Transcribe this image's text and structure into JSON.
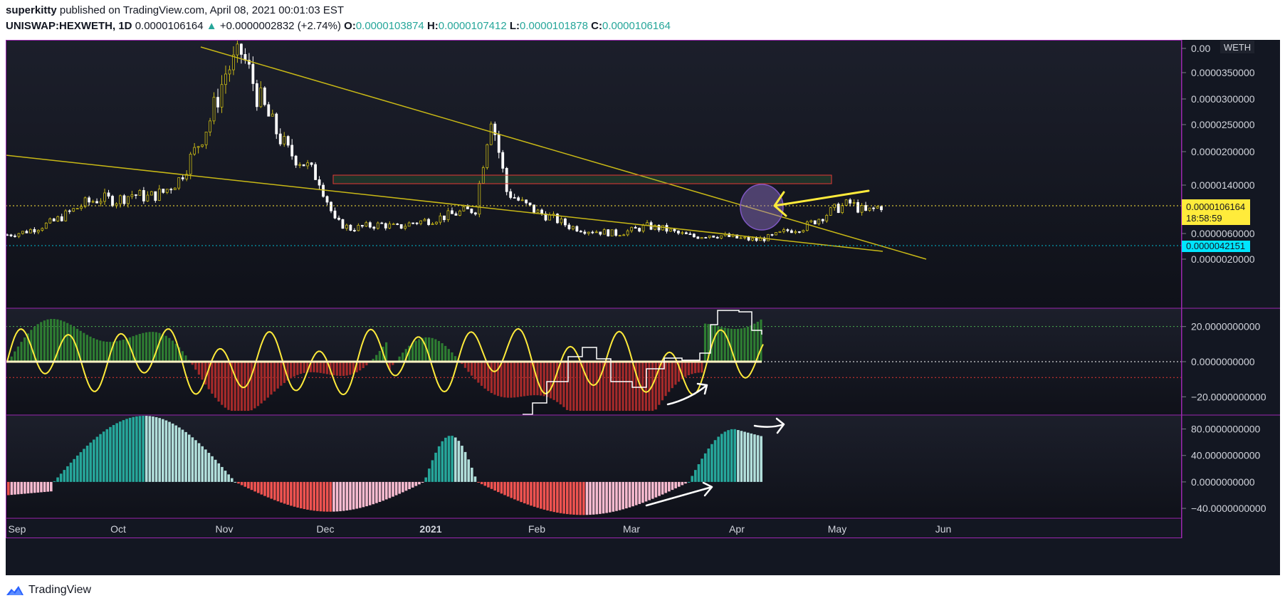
{
  "header": {
    "publisher": "superkitty",
    "published_text": "published on TradingView.com, April 08, 2021 00:01:03 EST",
    "symbol": "UNISWAP:HEXWETH, 1D",
    "last": "0.0000106164",
    "change": "+0.0000002832 (+2.74%)",
    "open_label": "O:",
    "open": "0.0000103874",
    "high_label": "H:",
    "high": "0.0000107412",
    "low_label": "L:",
    "low": "0.0000101878",
    "close_label": "C:",
    "close": "0.0000106164"
  },
  "footer": {
    "brand": "TradingView"
  },
  "colors": {
    "background": "#131722",
    "panel_border": "#9c27b0",
    "trendline": "#c8b816",
    "osc_line": "#ffeb3b",
    "hist_green": "#2e7d32",
    "hist_red": "#a52a2a",
    "teal": "#26a69a",
    "teal_light": "#b2dfdb",
    "red": "#ef5350",
    "pink": "#f8bbd0",
    "price_label": "#ffeb3b",
    "low_label": "#00e5ff"
  },
  "chart_data": [
    {
      "type": "candlestick",
      "currency_label": "WETH",
      "x_ticks": [
        "Sep",
        "Oct",
        "Nov",
        "Dec",
        "2021",
        "Feb",
        "Mar",
        "Apr",
        "May",
        "Jun"
      ],
      "y_ticks": [
        "0.0000020000",
        "0.0000060000",
        "0.0000140000",
        "0.0000200000",
        "0.0000250000",
        "0.0000300000",
        "0.0000350000",
        "0.00"
      ],
      "ylim": [
        5e-07,
        4.3e-05
      ],
      "price_label": "0.0000106164",
      "countdown": "18:58:59",
      "low_label": "0.0000042151",
      "close_approx": [
        5.8e-06,
        6.2e-06,
        7e-06,
        8e-06,
        9.5e-06,
        1.1e-05,
        1.18e-05,
        1.15e-05,
        1.25e-05,
        1.2e-05,
        1.28e-05,
        1.5e-05,
        2e-05,
        2.6e-05,
        3.5e-05,
        4e-05,
        3.1e-05,
        2.5e-05,
        2e-05,
        1.8e-05,
        1.5e-05,
        8e-06,
        6.8e-06,
        7.2e-06,
        7.5e-06,
        7e-06,
        7.8e-06,
        8.2e-06,
        8.8e-06,
        9.5e-06,
        1e-05,
        2.7e-05,
        1.3e-05,
        1.1e-05,
        9.5e-06,
        8.5e-06,
        7.2e-06,
        6.6e-06,
        6.3e-06,
        6e-06,
        6.5e-06,
        7.2e-06,
        6.8e-06,
        6e-06,
        5.5e-06,
        5.8e-06,
        5.6e-06,
        5.2e-06,
        5e-06,
        5.5e-06,
        6.5e-06,
        7e-06,
        8.5e-06,
        1e-05,
        1.1e-05,
        9.5e-06,
        1.06e-05
      ]
    },
    {
      "type": "line+histogram",
      "y_ticks": [
        "20.0000000000",
        "0.0000000000",
        "−20.0000000000"
      ],
      "ylim": [
        -30,
        30
      ],
      "levels": [
        20,
        0,
        -9
      ]
    },
    {
      "type": "histogram",
      "y_ticks": [
        "80.0000000000",
        "40.0000000000",
        "0.0000000000",
        "−40.0000000000"
      ],
      "ylim": [
        -55,
        100
      ]
    }
  ]
}
